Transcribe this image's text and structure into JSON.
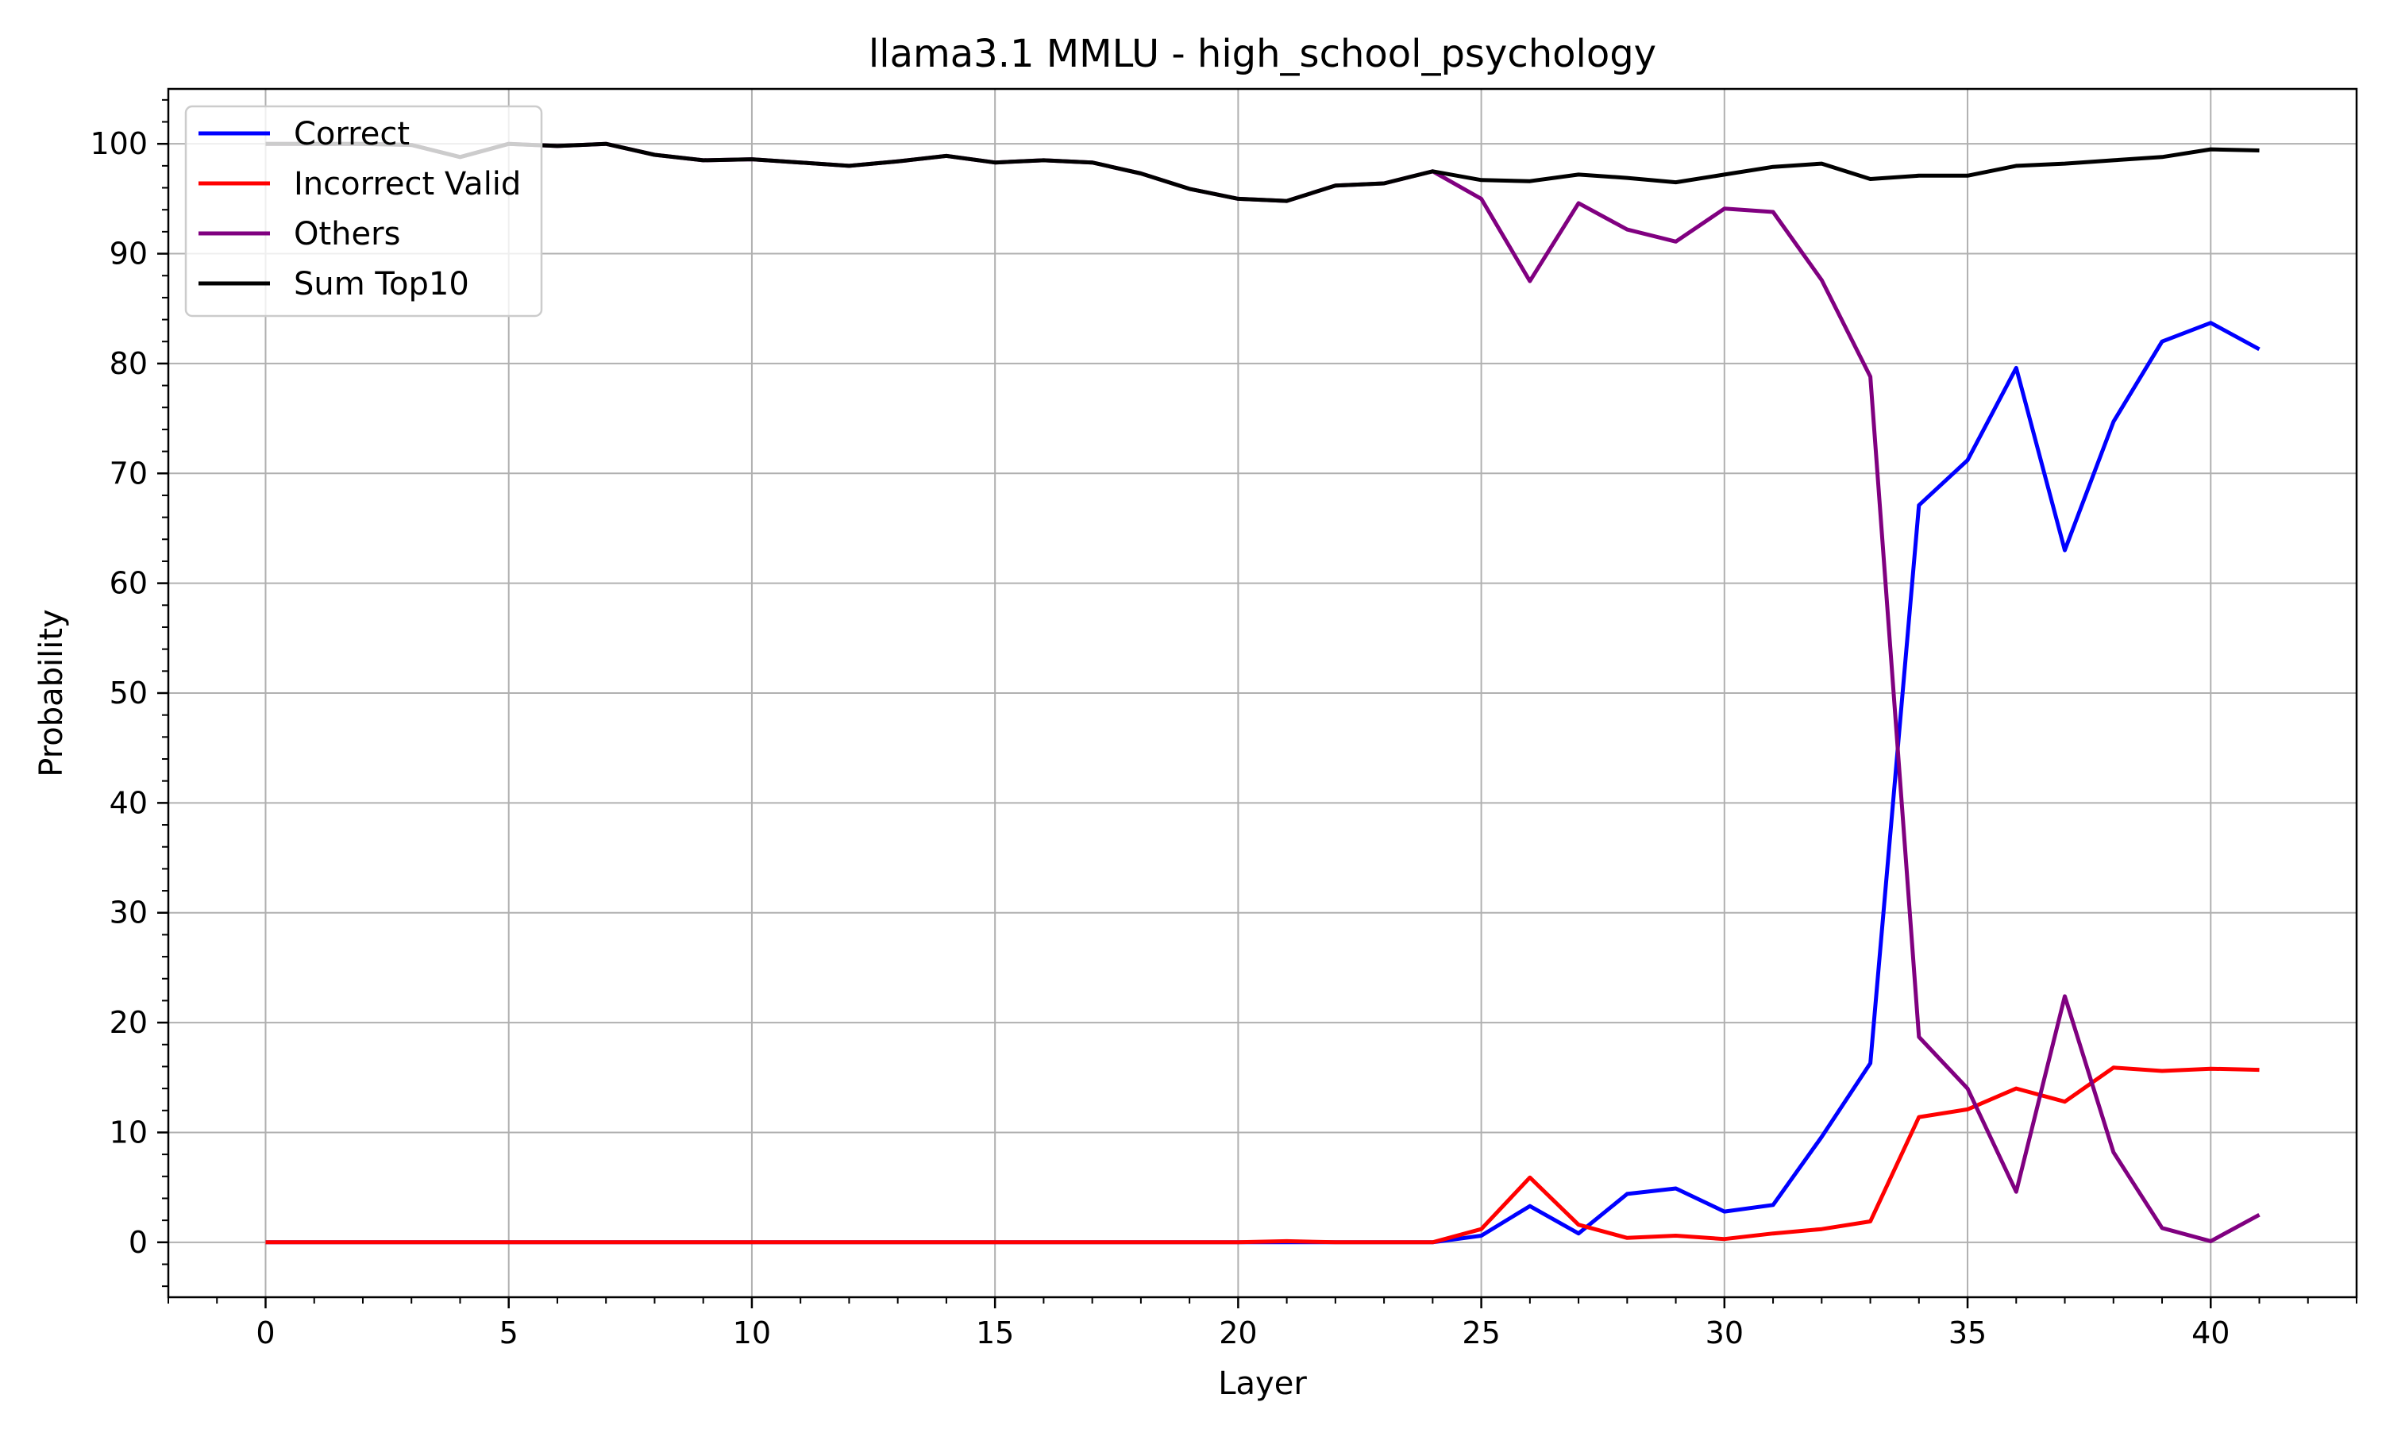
{
  "chart_data": {
    "type": "line",
    "title": "llama3.1 MMLU - high_school_psychology",
    "xlabel": "Layer",
    "ylabel": "Probability",
    "xlim": [
      -2,
      43
    ],
    "ylim": [
      -5,
      105
    ],
    "xticks": [
      0,
      5,
      10,
      15,
      20,
      25,
      30,
      35,
      40
    ],
    "yticks": [
      0,
      10,
      20,
      30,
      40,
      50,
      60,
      70,
      80,
      90,
      100
    ],
    "grid": true,
    "legend_position": "top-left",
    "x": [
      0,
      1,
      2,
      3,
      4,
      5,
      6,
      7,
      8,
      9,
      10,
      11,
      12,
      13,
      14,
      15,
      16,
      17,
      18,
      19,
      20,
      21,
      22,
      23,
      24,
      25,
      26,
      27,
      28,
      29,
      30,
      31,
      32,
      33,
      34,
      35,
      36,
      37,
      38,
      39,
      40,
      41
    ],
    "series": [
      {
        "name": "Correct",
        "color": "#0000ff",
        "values": [
          0,
          0,
          0,
          0,
          0,
          0,
          0,
          0,
          0,
          0,
          0,
          0,
          0,
          0,
          0,
          0,
          0,
          0,
          0,
          0,
          0,
          0,
          0,
          0,
          0,
          0.6,
          3.3,
          0.8,
          4.4,
          4.9,
          2.8,
          3.4,
          9.6,
          16.3,
          67.1,
          71.2,
          79.6,
          63.0,
          74.7,
          82.0,
          83.7,
          81.3
        ]
      },
      {
        "name": "Incorrect Valid",
        "color": "#ff0000",
        "values": [
          0,
          0,
          0,
          0,
          0,
          0,
          0,
          0,
          0,
          0,
          0,
          0,
          0,
          0,
          0,
          0,
          0,
          0,
          0,
          0,
          0,
          0.1,
          0,
          0,
          0,
          1.2,
          5.9,
          1.6,
          0.4,
          0.6,
          0.3,
          0.8,
          1.2,
          1.9,
          11.4,
          12.1,
          14.0,
          12.8,
          15.9,
          15.6,
          15.8,
          15.7
        ]
      },
      {
        "name": "Others",
        "color": "#800080",
        "values": [
          100,
          100,
          100,
          99.9,
          98.8,
          100,
          99.8,
          100,
          99,
          98.5,
          98.6,
          98.3,
          98,
          98.4,
          98.9,
          98.3,
          98.5,
          98.3,
          97.3,
          95.9,
          95,
          94.8,
          96.2,
          96.4,
          97.5,
          95,
          87.5,
          94.6,
          92.2,
          91.1,
          94.1,
          93.8,
          87.6,
          78.8,
          18.7,
          14.0,
          4.6,
          22.4,
          8.2,
          1.3,
          0.1,
          2.5
        ]
      },
      {
        "name": "Sum Top10",
        "color": "#000000",
        "values": [
          100,
          100,
          100,
          99.9,
          98.8,
          100,
          99.8,
          100,
          99,
          98.5,
          98.6,
          98.3,
          98,
          98.4,
          98.9,
          98.3,
          98.5,
          98.3,
          97.3,
          95.9,
          95,
          94.8,
          96.2,
          96.4,
          97.5,
          96.7,
          96.6,
          97.2,
          96.9,
          96.5,
          97.2,
          97.9,
          98.2,
          96.8,
          97.1,
          97.1,
          98,
          98.2,
          98.5,
          98.8,
          99.5,
          99.4
        ]
      }
    ]
  }
}
